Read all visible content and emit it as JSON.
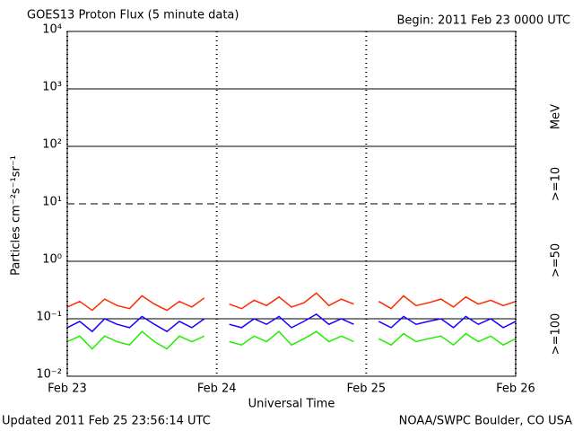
{
  "chart_data": {
    "type": "line",
    "title": "GOES13 Proton Flux (5 minute data)",
    "subtitle": "Begin: 2011 Feb 23 0000 UTC",
    "y_label": "Particles cm⁻²s⁻¹sr⁻¹",
    "x_label": "Universal Time",
    "footer_left": "Updated 2011 Feb 25 23:56:14 UTC",
    "footer_right": "NOAA/SWPC Boulder, CO USA",
    "legend_unit": "MeV",
    "log_scale": true,
    "grid": true,
    "reference_line": 10,
    "x": [
      0,
      2,
      4,
      6,
      8,
      10,
      12,
      14,
      16,
      18,
      20,
      22,
      24,
      26,
      28,
      30,
      32,
      34,
      36,
      38,
      40,
      42,
      44,
      46,
      48,
      50,
      52,
      54,
      56,
      58,
      60,
      62,
      64,
      66,
      68,
      70,
      72
    ],
    "xlim": [
      0,
      72
    ],
    "xticks": [
      {
        "value": 0,
        "label": "Feb 23"
      },
      {
        "value": 24,
        "label": "Feb 24"
      },
      {
        "value": 48,
        "label": "Feb 25"
      },
      {
        "value": 72,
        "label": "Feb 26"
      }
    ],
    "ylim": [
      0.01,
      10000
    ],
    "yticks": [
      {
        "value": 0.01,
        "label": "10⁻²"
      },
      {
        "value": 0.1,
        "label": "10⁻¹"
      },
      {
        "value": 1,
        "label": "10⁰"
      },
      {
        "value": 10,
        "label": "10¹"
      },
      {
        "value": 100,
        "label": "10²"
      },
      {
        "value": 1000,
        "label": "10³"
      },
      {
        "value": 10000,
        "label": "10⁴"
      }
    ],
    "series": [
      {
        "name": ">=10",
        "color": "#ff2a00",
        "values": [
          0.16,
          0.2,
          0.14,
          0.22,
          0.17,
          0.15,
          0.25,
          0.18,
          0.14,
          0.2,
          0.16,
          0.23,
          null,
          0.18,
          0.15,
          0.21,
          0.17,
          0.24,
          0.16,
          0.19,
          0.28,
          0.17,
          0.22,
          0.18,
          null,
          0.2,
          0.15,
          0.25,
          0.17,
          0.19,
          0.22,
          0.16,
          0.24,
          0.18,
          0.21,
          0.17,
          0.2
        ]
      },
      {
        "name": ">=50",
        "color": "#1a00ff",
        "values": [
          0.07,
          0.09,
          0.06,
          0.1,
          0.08,
          0.07,
          0.11,
          0.08,
          0.06,
          0.09,
          0.07,
          0.1,
          null,
          0.08,
          0.07,
          0.1,
          0.08,
          0.11,
          0.07,
          0.09,
          0.12,
          0.08,
          0.1,
          0.08,
          null,
          0.09,
          0.07,
          0.11,
          0.08,
          0.09,
          0.1,
          0.07,
          0.11,
          0.08,
          0.1,
          0.07,
          0.09
        ]
      },
      {
        "name": ">=100",
        "color": "#22ee00",
        "values": [
          0.04,
          0.05,
          0.03,
          0.05,
          0.04,
          0.035,
          0.06,
          0.04,
          0.03,
          0.05,
          0.04,
          0.05,
          null,
          0.04,
          0.035,
          0.05,
          0.04,
          0.06,
          0.035,
          0.045,
          0.06,
          0.04,
          0.05,
          0.04,
          null,
          0.045,
          0.035,
          0.055,
          0.04,
          0.045,
          0.05,
          0.035,
          0.055,
          0.04,
          0.05,
          0.035,
          0.045
        ]
      }
    ]
  }
}
